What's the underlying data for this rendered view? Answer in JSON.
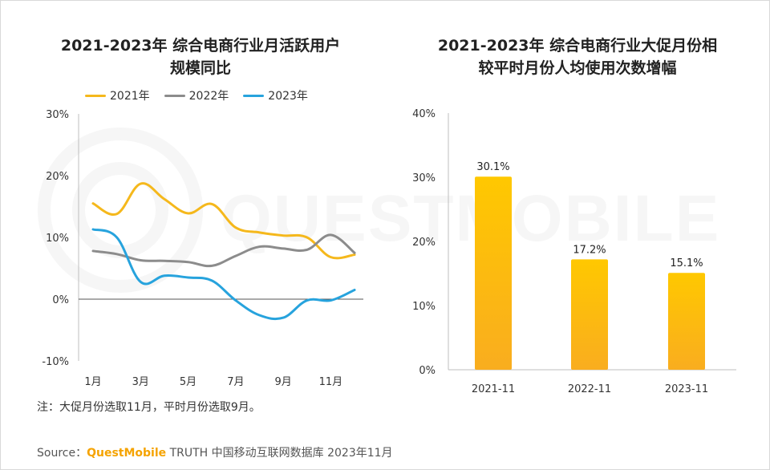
{
  "colors": {
    "y2021": "#f5b81c",
    "y2022": "#8c8c8c",
    "y2023": "#27a3dd",
    "bar_top": "#ffc800",
    "bar_bottom": "#f9ad1f",
    "brand": "#f5a300"
  },
  "watermark_text": "QUESTMOBILE",
  "left_title": [
    "2021-2023年 综合电商行业月活跃用户",
    "规模同比"
  ],
  "right_title": [
    "2021-2023年 综合电商行业大促月份相",
    "较平时月份人均使用次数增幅"
  ],
  "chart_data": [
    {
      "type": "line",
      "title": "2021-2023年 综合电商行业月活跃用户规模同比",
      "x": [
        1,
        2,
        3,
        4,
        5,
        6,
        7,
        8,
        9,
        10,
        11,
        12
      ],
      "xticks": [
        "1月",
        "3月",
        "5月",
        "7月",
        "9月",
        "11月"
      ],
      "xtick_positions": [
        1,
        3,
        5,
        7,
        9,
        11
      ],
      "yticks": [
        "30%",
        "20%",
        "10%",
        "0%",
        "-10%"
      ],
      "yticks_values": [
        30,
        20,
        10,
        0,
        -10
      ],
      "ylim": [
        -10,
        30
      ],
      "series": [
        {
          "name": "2021年",
          "color_key": "y2021",
          "values": [
            15.5,
            13.8,
            18.7,
            16.2,
            13.9,
            15.4,
            11.6,
            10.8,
            10.3,
            10.0,
            6.8,
            7.2
          ]
        },
        {
          "name": "2022年",
          "color_key": "y2022",
          "values": [
            7.8,
            7.3,
            6.3,
            6.2,
            6.0,
            5.4,
            7.0,
            8.5,
            8.2,
            8.0,
            10.4,
            7.5
          ]
        },
        {
          "name": "2023年",
          "color_key": "y2023",
          "values": [
            11.3,
            10.0,
            2.8,
            3.8,
            3.5,
            3.0,
            -0.2,
            -2.6,
            -3.0,
            -0.2,
            -0.2,
            1.5
          ]
        }
      ]
    },
    {
      "type": "bar",
      "title": "2021-2023年 综合电商行业大促月份相较平时月份人均使用次数增幅",
      "categories": [
        "2021-11",
        "2022-11",
        "2023-11"
      ],
      "values": [
        30.1,
        17.2,
        15.1
      ],
      "labels": [
        "30.1%",
        "17.2%",
        "15.1%"
      ],
      "yticks": [
        "40%",
        "30%",
        "20%",
        "10%",
        "0%"
      ],
      "yticks_values": [
        40,
        30,
        20,
        10,
        0
      ],
      "ylim": [
        0,
        40
      ]
    }
  ],
  "note": "注：大促月份选取11月，平时月份选取9月。",
  "source": {
    "prefix": "Source：",
    "brand": "QuestMobile",
    "rest": " TRUTH 中国移动互联网数据库 2023年11月"
  }
}
